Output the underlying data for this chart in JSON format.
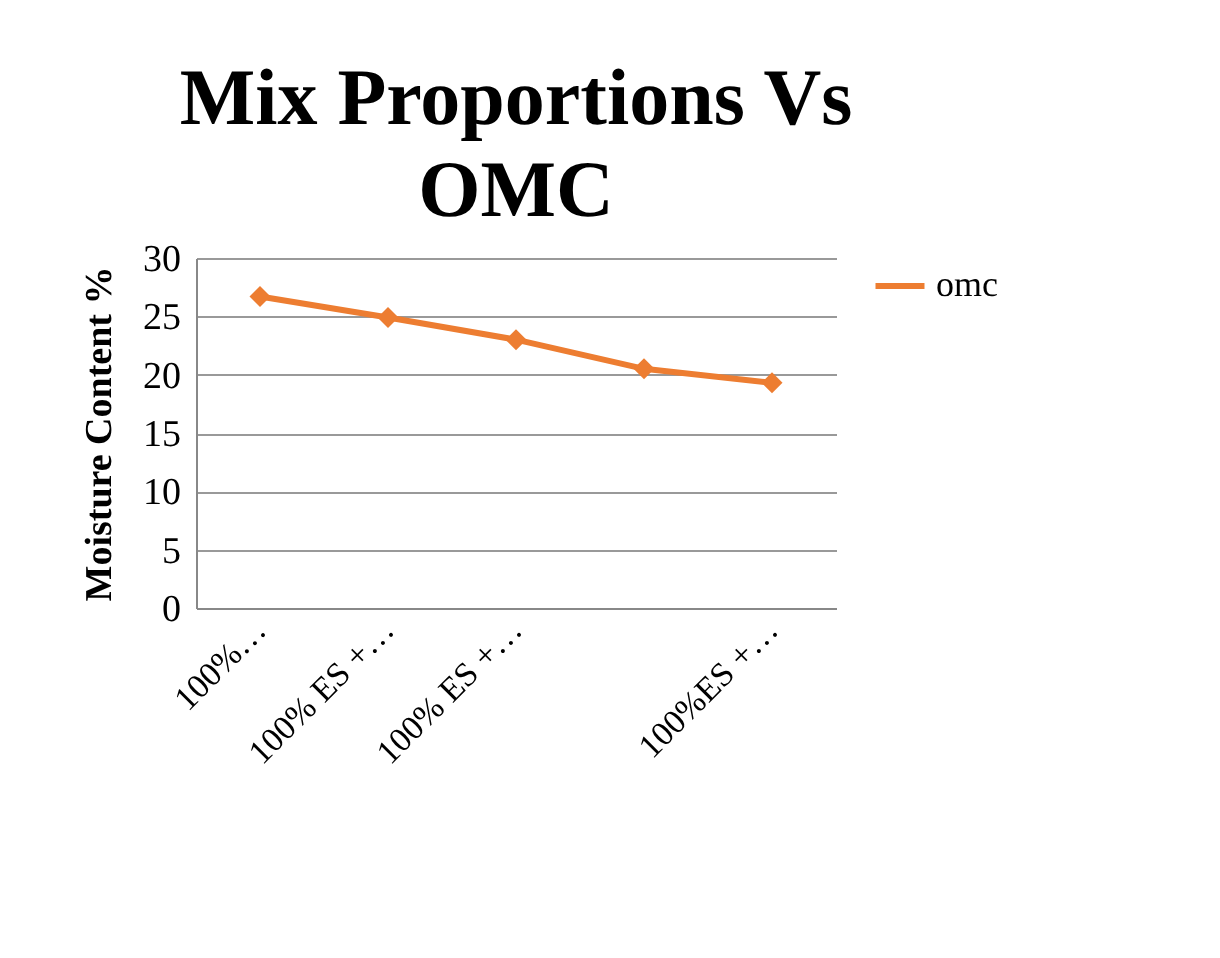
{
  "chart_data": {
    "type": "line",
    "title": [
      "Mix Proportions Vs",
      "OMC"
    ],
    "ylabel": "Moisture Content %",
    "categories": [
      "100%…",
      "100% ES +…",
      "100% ES +…",
      null,
      "100%ES +…"
    ],
    "series": [
      {
        "name": "omc",
        "color": "#ed7d31",
        "values": [
          26.7,
          24.9,
          23.0,
          20.5,
          19.3
        ]
      }
    ],
    "ylim": [
      0,
      30
    ],
    "yticks": [
      0,
      5,
      10,
      15,
      20,
      25,
      30
    ],
    "grid": "y",
    "legend": "right",
    "marker": "diamond",
    "line_style": "solid"
  }
}
